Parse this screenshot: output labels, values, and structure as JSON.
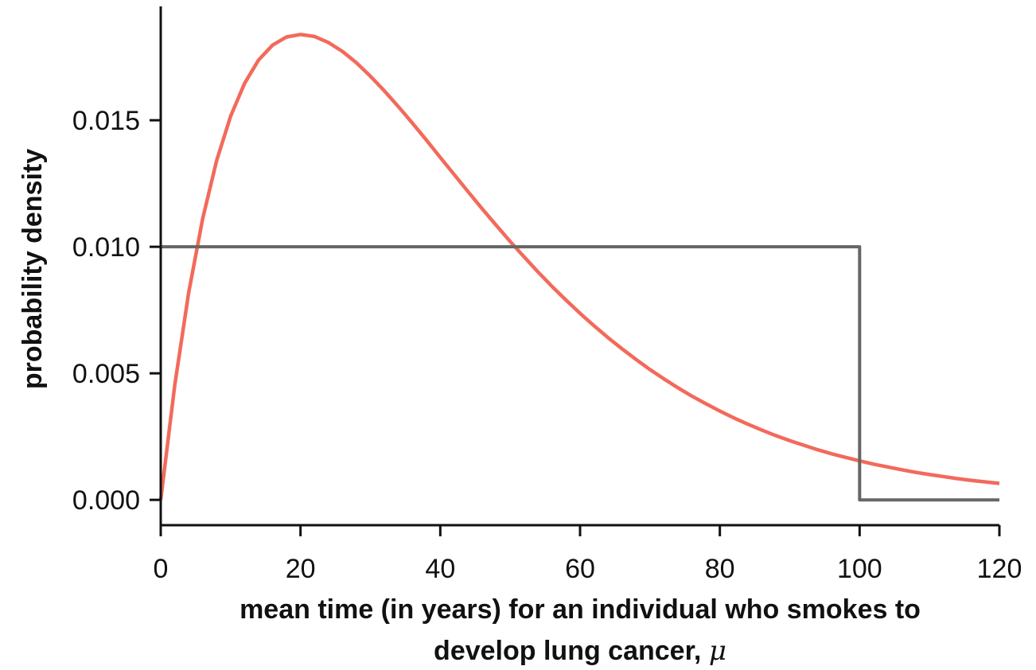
{
  "chart_data": {
    "type": "line",
    "title": "",
    "xlabel_lines": [
      "mean time (in years) for an individual who smokes to",
      "develop lung cancer, "
    ],
    "xlabel_symbol": "μ",
    "ylabel": "probability density",
    "xlim": [
      0,
      120
    ],
    "ylim": [
      -0.001,
      0.0195
    ],
    "x_ticks": [
      0,
      20,
      40,
      60,
      80,
      100,
      120
    ],
    "x_tick_labels": [
      "0",
      "20",
      "40",
      "60",
      "80",
      "100",
      "120"
    ],
    "y_ticks": [
      0.0,
      0.005,
      0.01,
      0.015
    ],
    "y_tick_labels": [
      "0.000",
      "0.005",
      "0.010",
      "0.015"
    ],
    "grid": false,
    "legend": "none",
    "series": [
      {
        "color": "#f26a5b",
        "x": [
          0,
          2,
          4,
          6,
          8,
          10,
          12,
          14,
          16,
          18,
          20,
          22,
          24,
          26,
          28,
          30,
          32,
          34,
          36,
          38,
          40,
          42,
          44,
          46,
          48,
          50,
          52,
          54,
          56,
          58,
          60,
          62,
          64,
          66,
          68,
          70,
          72,
          74,
          76,
          78,
          80,
          82,
          84,
          86,
          88,
          90,
          92,
          94,
          96,
          98,
          100,
          102,
          104,
          106,
          108,
          110,
          112,
          114,
          116,
          118,
          120
        ],
        "y": [
          0.0,
          0.00452,
          0.00819,
          0.01111,
          0.01341,
          0.01516,
          0.01646,
          0.01738,
          0.01797,
          0.01829,
          0.01839,
          0.01831,
          0.01807,
          0.01772,
          0.01727,
          0.01674,
          0.01616,
          0.01554,
          0.01489,
          0.01422,
          0.01353,
          0.01285,
          0.01217,
          0.0115,
          0.01085,
          0.01021,
          0.0096,
          0.009,
          0.00843,
          0.00789,
          0.00737,
          0.00688,
          0.00641,
          0.00597,
          0.00555,
          0.00515,
          0.00478,
          0.00443,
          0.0041,
          0.0038,
          0.00351,
          0.00324,
          0.00299,
          0.00276,
          0.00254,
          0.00234,
          0.00216,
          0.00198,
          0.00182,
          0.00168,
          0.00154,
          0.00141,
          0.0013,
          0.00119,
          0.00109,
          0.001,
          0.00092,
          0.00084,
          0.00077,
          0.00071,
          0.00065
        ]
      },
      {
        "color": "#666666",
        "x": [
          0,
          100,
          100,
          120
        ],
        "y": [
          0.01,
          0.01,
          0.0,
          0.0
        ]
      }
    ]
  }
}
